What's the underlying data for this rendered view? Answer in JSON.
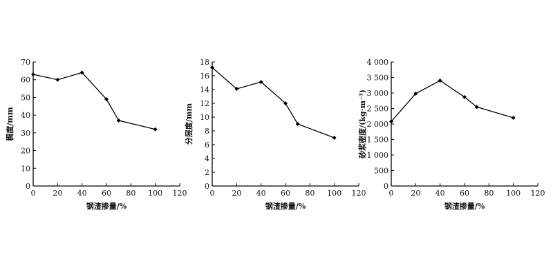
{
  "chart_data": [
    {
      "type": "line",
      "x": [
        0,
        20,
        40,
        60,
        70,
        100
      ],
      "values": [
        63,
        60,
        64,
        49,
        37,
        32
      ],
      "xlabel": "钢渣掺量/%",
      "ylabel": "稠度/mm",
      "xlim": [
        0,
        120
      ],
      "ylim": [
        0,
        70
      ],
      "xticks": [
        "0",
        "20",
        "40",
        "60",
        "80",
        "100",
        "120"
      ],
      "yticks": [
        "0",
        "10",
        "20",
        "30",
        "40",
        "50",
        "60",
        "70"
      ],
      "grid": false
    },
    {
      "type": "line",
      "x": [
        0,
        20,
        40,
        60,
        70,
        100
      ],
      "values": [
        17.2,
        14.1,
        15.1,
        12,
        9,
        7
      ],
      "xlabel": "钢渣掺量/%",
      "ylabel": "分层度/mm",
      "xlim": [
        0,
        120
      ],
      "ylim": [
        0,
        18
      ],
      "xticks": [
        "0",
        "20",
        "40",
        "60",
        "80",
        "100",
        "120"
      ],
      "yticks": [
        "0",
        "2",
        "4",
        "6",
        "8",
        "10",
        "12",
        "14",
        "16",
        "18"
      ],
      "grid": false
    },
    {
      "type": "line",
      "x": [
        0,
        20,
        40,
        60,
        70,
        100
      ],
      "values": [
        2080,
        2980,
        3400,
        2870,
        2550,
        2200
      ],
      "xlabel": "钢渣掺量/%",
      "ylabel": "砂浆密度/(kg·m⁻³)",
      "xlim": [
        0,
        120
      ],
      "ylim": [
        0,
        4000
      ],
      "xticks": [
        "0",
        "20",
        "40",
        "60",
        "80",
        "100",
        "120"
      ],
      "yticks": [
        "0",
        "500",
        "1 000",
        "1 500",
        "2 000",
        "2 500",
        "3 000",
        "3 500",
        "4 000"
      ],
      "grid": false
    }
  ]
}
